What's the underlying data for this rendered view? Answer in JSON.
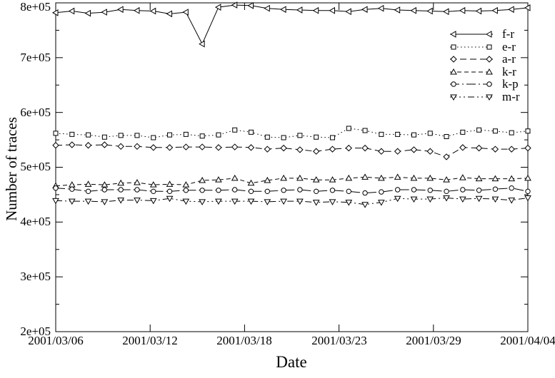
{
  "chart_data": {
    "type": "line",
    "title": "",
    "xlabel": "Date",
    "ylabel": "Number of traces",
    "ylim": [
      200000,
      800000
    ],
    "grid": false,
    "legend_position": "inside-top-right",
    "fg_color": "#000000",
    "bg_color": "#ffffff",
    "y_tick_labels": [
      "2e+05",
      "3e+05",
      "4e+05",
      "5e+05",
      "6e+05",
      "7e+05",
      "8e+05"
    ],
    "x_tick_labels": [
      "2001/03/06",
      "2001/03/12",
      "2001/03/18",
      "2001/03/23",
      "2001/03/29",
      "2001/04/04"
    ],
    "series": [
      {
        "name": "f-r",
        "marker": "triangle-left",
        "line_style": "solid",
        "values": [
          782000,
          785000,
          781000,
          783000,
          788000,
          786000,
          785000,
          780000,
          783000,
          725000,
          792000,
          796000,
          795000,
          790000,
          788000,
          787000,
          786000,
          786000,
          784000,
          788000,
          790000,
          787000,
          786000,
          785000,
          784000,
          786000,
          785000,
          786000,
          788000,
          791000
        ]
      },
      {
        "name": "e-r",
        "marker": "square",
        "line_style": "dotted",
        "values": [
          562000,
          560000,
          559000,
          555000,
          558000,
          558000,
          554000,
          559000,
          560000,
          557000,
          559000,
          568000,
          564000,
          555000,
          554000,
          558000,
          555000,
          554000,
          571000,
          567000,
          560000,
          560000,
          559000,
          562000,
          556000,
          564000,
          568000,
          566000,
          563000,
          566000
        ]
      },
      {
        "name": "a-r",
        "marker": "diamond",
        "line_style": "long-dash",
        "values": [
          540000,
          541000,
          540000,
          541000,
          538000,
          538000,
          536000,
          536000,
          537000,
          537000,
          536000,
          537000,
          536000,
          533000,
          535000,
          532000,
          529000,
          533000,
          535000,
          535000,
          529000,
          529000,
          532000,
          529000,
          519000,
          536000,
          535000,
          533000,
          533000,
          535000
        ]
      },
      {
        "name": "k-r",
        "marker": "triangle-up",
        "line_style": "short-dash",
        "values": [
          466000,
          468000,
          469000,
          468000,
          471000,
          472000,
          468000,
          469000,
          468000,
          476000,
          477000,
          480000,
          471000,
          476000,
          480000,
          480000,
          477000,
          477000,
          480000,
          482000,
          480000,
          482000,
          480000,
          480000,
          477000,
          481000,
          479000,
          479000,
          479000,
          480000
        ]
      },
      {
        "name": "k-p",
        "marker": "circle",
        "line_style": "dash-dot",
        "values": [
          462000,
          460000,
          456000,
          459000,
          459000,
          459000,
          456000,
          456000,
          458000,
          458000,
          458000,
          459000,
          456000,
          456000,
          458000,
          459000,
          456000,
          458000,
          456000,
          453000,
          455000,
          459000,
          459000,
          458000,
          456000,
          459000,
          458000,
          460000,
          462000,
          456000
        ]
      },
      {
        "name": "m-r",
        "marker": "triangle-down",
        "line_style": "dash-dot-dot",
        "values": [
          439000,
          438000,
          438000,
          437000,
          440000,
          440000,
          439000,
          443000,
          438000,
          437000,
          438000,
          438000,
          438000,
          437000,
          438000,
          438000,
          436000,
          437000,
          436000,
          432000,
          436000,
          443000,
          442000,
          442000,
          444000,
          442000,
          443000,
          442000,
          440000,
          444000
        ]
      }
    ]
  }
}
